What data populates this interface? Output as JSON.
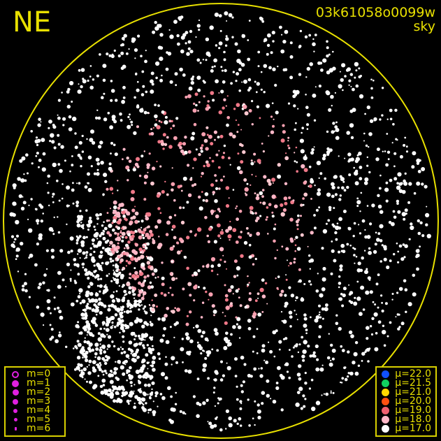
{
  "plot": {
    "direction_label": "NE",
    "frame_id": "03k61058o0099w",
    "frame_type": "sky",
    "circle_color": "#e8e000"
  },
  "magnitude_legend": [
    {
      "label": "m=0",
      "style": "ring"
    },
    {
      "label": "m=1",
      "style": "dot"
    },
    {
      "label": "m=2",
      "style": "dot"
    },
    {
      "label": "m=3",
      "style": "dot"
    },
    {
      "label": "m=4",
      "style": "dot"
    },
    {
      "label": "m=5",
      "style": "dot"
    },
    {
      "label": "m=6",
      "style": "dot"
    }
  ],
  "magnitude_legend_color": "#e020e0",
  "brightness_legend": [
    {
      "label": "μ=22.0",
      "color": "#1050ff"
    },
    {
      "label": "μ=21.5",
      "color": "#10d060"
    },
    {
      "label": "μ=21.0",
      "color": "#ffd800"
    },
    {
      "label": "μ=20.0",
      "color": "#ff5010"
    },
    {
      "label": "μ=19.0",
      "color": "#f06070"
    },
    {
      "label": "μ=18.0",
      "color": "#ffb8c8"
    },
    {
      "label": "μ=17.0",
      "color": "#ffffff"
    }
  ]
}
